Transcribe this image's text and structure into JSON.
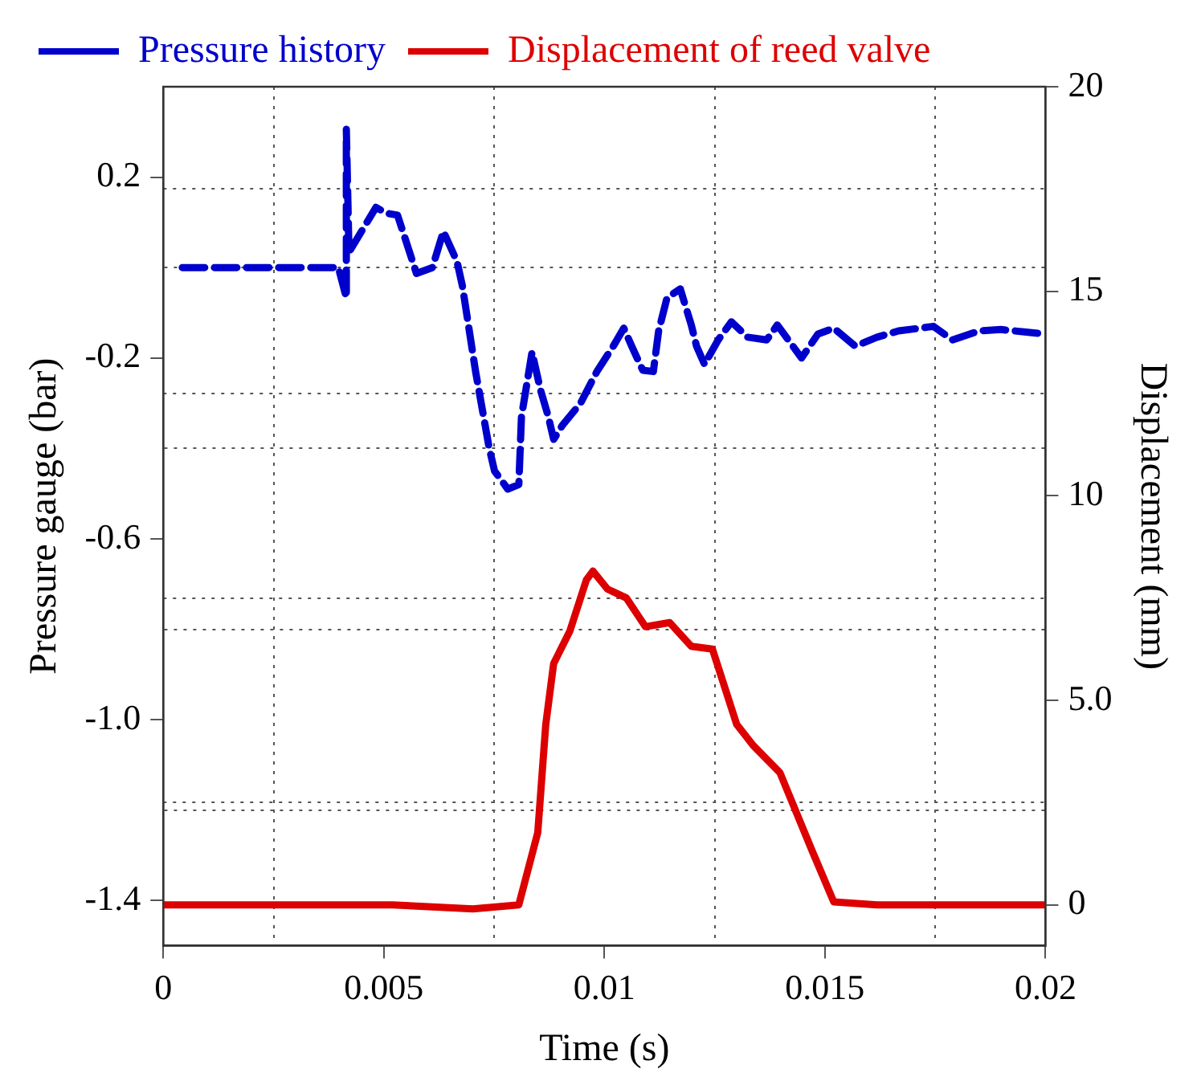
{
  "chart_data": {
    "type": "line",
    "xlabel": "Time (s)",
    "ylabel": "Pressure gauge (bar)",
    "y2label": "Displacement (mm)",
    "xlim": [
      0,
      0.02
    ],
    "xticks": [
      0,
      {
        "value": 0.0025,
        "label": null
      },
      0.005,
      {
        "value": 0.0075,
        "label": null
      },
      0.01,
      {
        "value": 0.0125,
        "label": null
      },
      0.015,
      {
        "value": 0.0175,
        "label": null
      },
      0.02
    ],
    "ylim": [
      -1.5,
      0.4
    ],
    "yticks": [
      {
        "value": -1.4,
        "label": "-1.4"
      },
      {
        "value": -1.2,
        "label": null
      },
      {
        "value": -1,
        "label": "-1.0"
      },
      {
        "value": -0.8,
        "label": null
      },
      {
        "value": -0.6,
        "label": "-0.6"
      },
      {
        "value": -0.4,
        "label": null
      },
      {
        "value": -0.2,
        "label": "-0.2"
      },
      {
        "value": 0,
        "label": null
      },
      {
        "value": 0.2,
        "label": "0.2"
      }
    ],
    "y2lim": [
      -1,
      20
    ],
    "y2ticks": [
      0,
      {
        "value": 2.5,
        "label": null
      },
      {
        "value": 5,
        "label": "5.0"
      },
      {
        "value": 7.5,
        "label": null
      },
      10,
      {
        "value": 12.5,
        "label": null
      },
      15,
      {
        "value": 17.5,
        "label": null
      },
      20
    ],
    "grid": true,
    "legend": "top left",
    "marker": "none",
    "series": [
      {
        "name": "Pressure history",
        "color": "#0000cc",
        "line_style": "dashed",
        "x": [
          0.00043,
          0.00397,
          0.00415,
          0.00415,
          0.00421,
          0.00482,
          0.00507,
          0.00531,
          0.00574,
          0.0061,
          0.00635,
          0.00666,
          0.00678,
          0.00708,
          0.00739,
          0.00751,
          0.00781,
          0.00806,
          0.00812,
          0.00836,
          0.00855,
          0.00873,
          0.00885,
          0.00904,
          0.00946,
          0.00983,
          0.0102,
          0.01044,
          0.01062,
          0.01087,
          0.01111,
          0.01123,
          0.01142,
          0.01172,
          0.01197,
          0.01209,
          0.01227,
          0.01258,
          0.01288,
          0.01325,
          0.01368,
          0.01392,
          0.01447,
          0.01484,
          0.0152,
          0.01569,
          0.01618,
          0.01667,
          0.01716,
          0.01746,
          0.01789,
          0.0185,
          0.01899,
          0.02
        ],
        "values": [
          0.0,
          0.0,
          -0.067,
          0.306,
          0.034,
          0.133,
          0.12,
          0.116,
          -0.013,
          0.0,
          0.08,
          0.013,
          -0.04,
          -0.23,
          -0.4,
          -0.45,
          -0.49,
          -0.48,
          -0.33,
          -0.187,
          -0.27,
          -0.33,
          -0.38,
          -0.35,
          -0.3,
          -0.23,
          -0.174,
          -0.134,
          -0.174,
          -0.227,
          -0.23,
          -0.14,
          -0.067,
          -0.047,
          -0.127,
          -0.174,
          -0.214,
          -0.16,
          -0.12,
          -0.154,
          -0.16,
          -0.127,
          -0.2,
          -0.147,
          -0.134,
          -0.174,
          -0.154,
          -0.14,
          -0.134,
          -0.13,
          -0.16,
          -0.14,
          -0.137,
          -0.147
        ]
      },
      {
        "name": "Displacement of reed valve",
        "color": "#dd0000",
        "line_style": "solid",
        "axis": "y2",
        "x": [
          0,
          0.00519,
          0.00702,
          0.00806,
          0.00849,
          0.00867,
          0.00885,
          0.00922,
          0.00959,
          0.00974,
          0.01007,
          0.0105,
          0.01093,
          0.01148,
          0.01197,
          0.01245,
          0.013,
          0.01337,
          0.01398,
          0.01471,
          0.0152,
          0.01618,
          0.02
        ],
        "values": [
          0,
          0,
          -0.1,
          0,
          1.77,
          4.4,
          5.9,
          6.7,
          7.94,
          8.16,
          7.72,
          7.5,
          6.8,
          6.9,
          6.32,
          6.25,
          4.41,
          3.9,
          3.23,
          1.32,
          0.07,
          0,
          0
        ]
      }
    ]
  }
}
